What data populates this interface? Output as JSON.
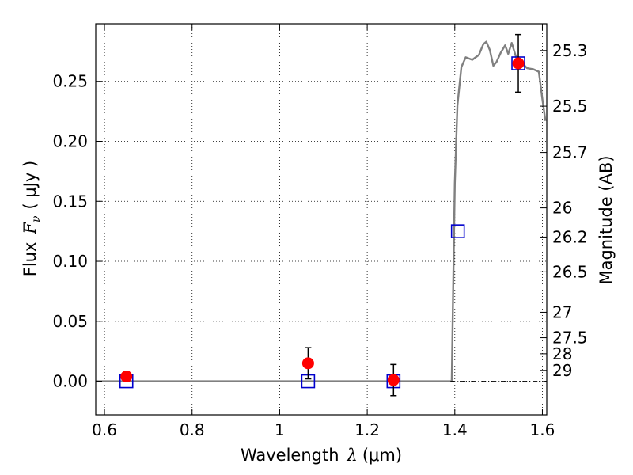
{
  "chart_data": {
    "type": "scatter",
    "xlabel": "Wavelength",
    "xlabel_math": "λ",
    "xlabel_unit": "(μm)",
    "ylabel_left_prefix": "Flux",
    "ylabel_left_math": "F",
    "ylabel_left_sub": "ν",
    "ylabel_left_unit": "( μJy )",
    "ylabel_right": "Magnitude (AB)",
    "xlim": [
      0.58,
      1.61
    ],
    "ylim": [
      -0.028,
      0.298
    ],
    "grid": true,
    "x_ticks": [
      {
        "value": 0.6,
        "label": "0.6"
      },
      {
        "value": 0.8,
        "label": "0.8"
      },
      {
        "value": 1.0,
        "label": "1"
      },
      {
        "value": 1.2,
        "label": "1.2"
      },
      {
        "value": 1.4,
        "label": "1.4"
      },
      {
        "value": 1.6,
        "label": "1.6"
      }
    ],
    "y_ticks": [
      {
        "value": 0.0,
        "label": "0.00"
      },
      {
        "value": 0.05,
        "label": "0.05"
      },
      {
        "value": 0.1,
        "label": "0.10"
      },
      {
        "value": 0.15,
        "label": "0.15"
      },
      {
        "value": 0.2,
        "label": "0.20"
      },
      {
        "value": 0.25,
        "label": "0.25"
      }
    ],
    "magnitude_ticks": [
      {
        "label": "25.3",
        "flux": 0.2757
      },
      {
        "label": "25.5",
        "flux": 0.2293
      },
      {
        "label": "25.7",
        "flux": 0.1907
      },
      {
        "label": "26",
        "flux": 0.1445
      },
      {
        "label": "26.2",
        "flux": 0.1202
      },
      {
        "label": "26.5",
        "flux": 0.0912
      },
      {
        "label": "27",
        "flux": 0.0575
      },
      {
        "label": "27.5",
        "flux": 0.0363
      },
      {
        "label": "28",
        "flux": 0.0229
      },
      {
        "label": "29",
        "flux": 0.0091
      }
    ],
    "series": [
      {
        "kind": "observed",
        "color": "#ff0000",
        "points": [
          {
            "x": 0.65,
            "y": 0.004,
            "err": 0.004
          },
          {
            "x": 1.065,
            "y": 0.015,
            "err": 0.013
          },
          {
            "x": 1.26,
            "y": 0.001,
            "err": 0.013
          },
          {
            "x": 1.545,
            "y": 0.265,
            "err": 0.024
          }
        ]
      },
      {
        "kind": "model-bandpass",
        "color": "#0000cc",
        "points": [
          {
            "x": 0.65,
            "y": 0.0
          },
          {
            "x": 1.065,
            "y": 0.0
          },
          {
            "x": 1.26,
            "y": 0.0
          },
          {
            "x": 1.407,
            "y": 0.125
          },
          {
            "x": 1.545,
            "y": 0.265
          }
        ]
      },
      {
        "kind": "model-spectrum",
        "color": "#808080",
        "points": [
          [
            0.58,
            0.0
          ],
          [
            1.393,
            0.0
          ],
          [
            1.4,
            0.165
          ],
          [
            1.406,
            0.23
          ],
          [
            1.415,
            0.262
          ],
          [
            1.425,
            0.27
          ],
          [
            1.44,
            0.268
          ],
          [
            1.455,
            0.272
          ],
          [
            1.465,
            0.281
          ],
          [
            1.472,
            0.283
          ],
          [
            1.48,
            0.276
          ],
          [
            1.488,
            0.263
          ],
          [
            1.495,
            0.266
          ],
          [
            1.505,
            0.274
          ],
          [
            1.515,
            0.28
          ],
          [
            1.522,
            0.273
          ],
          [
            1.53,
            0.282
          ],
          [
            1.54,
            0.27
          ],
          [
            1.552,
            0.266
          ],
          [
            1.565,
            0.261
          ],
          [
            1.58,
            0.26
          ],
          [
            1.592,
            0.258
          ],
          [
            1.6,
            0.235
          ],
          [
            1.607,
            0.217
          ]
        ]
      }
    ]
  }
}
